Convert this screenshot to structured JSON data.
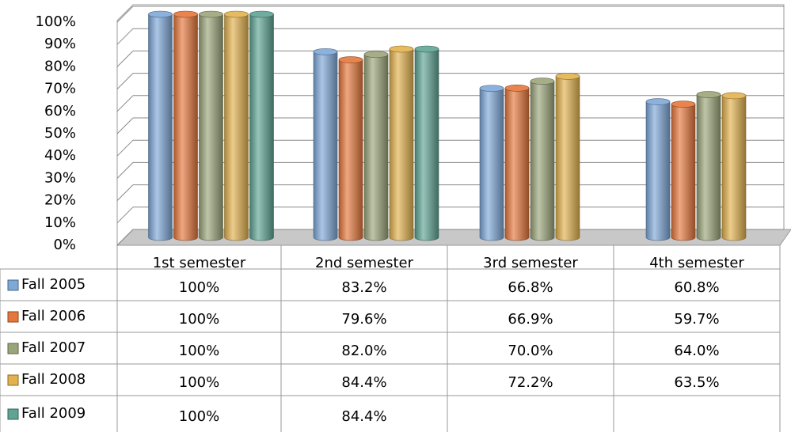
{
  "chart_data": {
    "type": "bar",
    "categories": [
      "1st semester",
      "2nd semester",
      "3rd semester",
      "4th semester"
    ],
    "series": [
      {
        "name": "Fall 2005",
        "color": "#7ea8d8",
        "values": [
          100,
          83.2,
          66.8,
          60.8
        ],
        "value_labels": [
          "100%",
          "83.2%",
          "66.8%",
          "60.8%"
        ]
      },
      {
        "name": "Fall 2006",
        "color": "#e5773b",
        "values": [
          100,
          79.6,
          66.9,
          59.7
        ],
        "value_labels": [
          "100%",
          "79.6%",
          "66.9%",
          "59.7%"
        ]
      },
      {
        "name": "Fall 2007",
        "color": "#9ba57a",
        "values": [
          100,
          82.0,
          70.0,
          64.0
        ],
        "value_labels": [
          "100%",
          "82.0%",
          "70.0%",
          "64.0%"
        ]
      },
      {
        "name": "Fall 2008",
        "color": "#e3b24e",
        "values": [
          100,
          84.4,
          72.2,
          63.5
        ],
        "value_labels": [
          "100%",
          "84.4%",
          "72.2%",
          "63.5%"
        ]
      },
      {
        "name": "Fall 2009",
        "color": "#5fa494",
        "values": [
          100,
          84.4,
          null,
          null
        ],
        "value_labels": [
          "100%",
          "84.4%",
          null,
          null
        ]
      }
    ],
    "ylim": [
      0,
      100
    ],
    "yticks": [
      {
        "value": 0,
        "label": "0%"
      },
      {
        "value": 10,
        "label": "10%"
      },
      {
        "value": 20,
        "label": "20%"
      },
      {
        "value": 30,
        "label": "30%"
      },
      {
        "value": 40,
        "label": "40%"
      },
      {
        "value": 50,
        "label": "50%"
      },
      {
        "value": 60,
        "label": "60%"
      },
      {
        "value": 70,
        "label": "70%"
      },
      {
        "value": 80,
        "label": "80%"
      },
      {
        "value": 90,
        "label": "90%"
      },
      {
        "value": 100,
        "label": "100%"
      }
    ],
    "grid": true,
    "data_table": true
  }
}
